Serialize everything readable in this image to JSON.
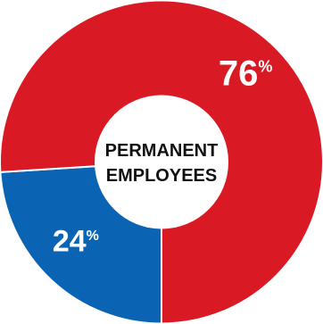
{
  "chart_data": {
    "type": "pie",
    "donut": true,
    "start": "bottom",
    "direction": "clockwise",
    "center_label": [
      "PERMANENT",
      "EMPLOYEES"
    ],
    "slices": [
      {
        "value": 24,
        "label": "24",
        "suffix": "%",
        "color": "#0b64b3"
      },
      {
        "value": 76,
        "label": "76",
        "suffix": "%",
        "color": "#d91a24"
      }
    ]
  }
}
